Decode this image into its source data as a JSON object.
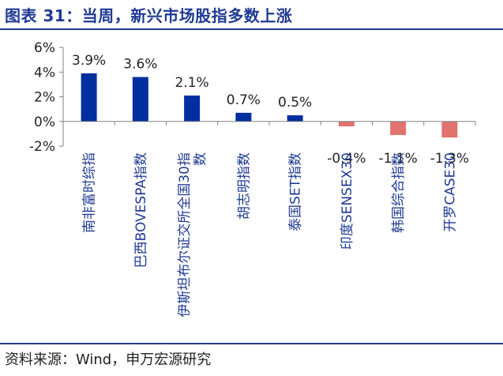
{
  "header": {
    "title": "图表 31：当周，新兴市场股指多数上涨"
  },
  "footer": {
    "source": "资料来源：Wind，申万宏源研究"
  },
  "colors": {
    "accent": "#1f3a93",
    "positive_bar": "#002fa0",
    "negative_bar": "#e0736e"
  },
  "chart_data": {
    "type": "bar",
    "categories": [
      "南非富时综指",
      "巴西BOVESPA指数",
      "伊斯坦布尔证交所全国30指数",
      "胡志明指数",
      "泰国SET指数",
      "印度SENSEX30",
      "韩国综合指数",
      "开罗CASE30"
    ],
    "values": [
      3.9,
      3.6,
      2.1,
      0.7,
      0.5,
      -0.4,
      -1.1,
      -1.3
    ],
    "value_labels": [
      "3.9%",
      "3.6%",
      "2.1%",
      "0.7%",
      "0.5%",
      "-0.4%",
      "-1.1%",
      "-1.3%"
    ],
    "yticks": [
      -2,
      0,
      2,
      4,
      6
    ],
    "ytick_labels": [
      "-2%",
      "0%",
      "2%",
      "4%",
      "6%"
    ],
    "ylim": [
      -2,
      6
    ],
    "grid": false,
    "legend": "none"
  }
}
